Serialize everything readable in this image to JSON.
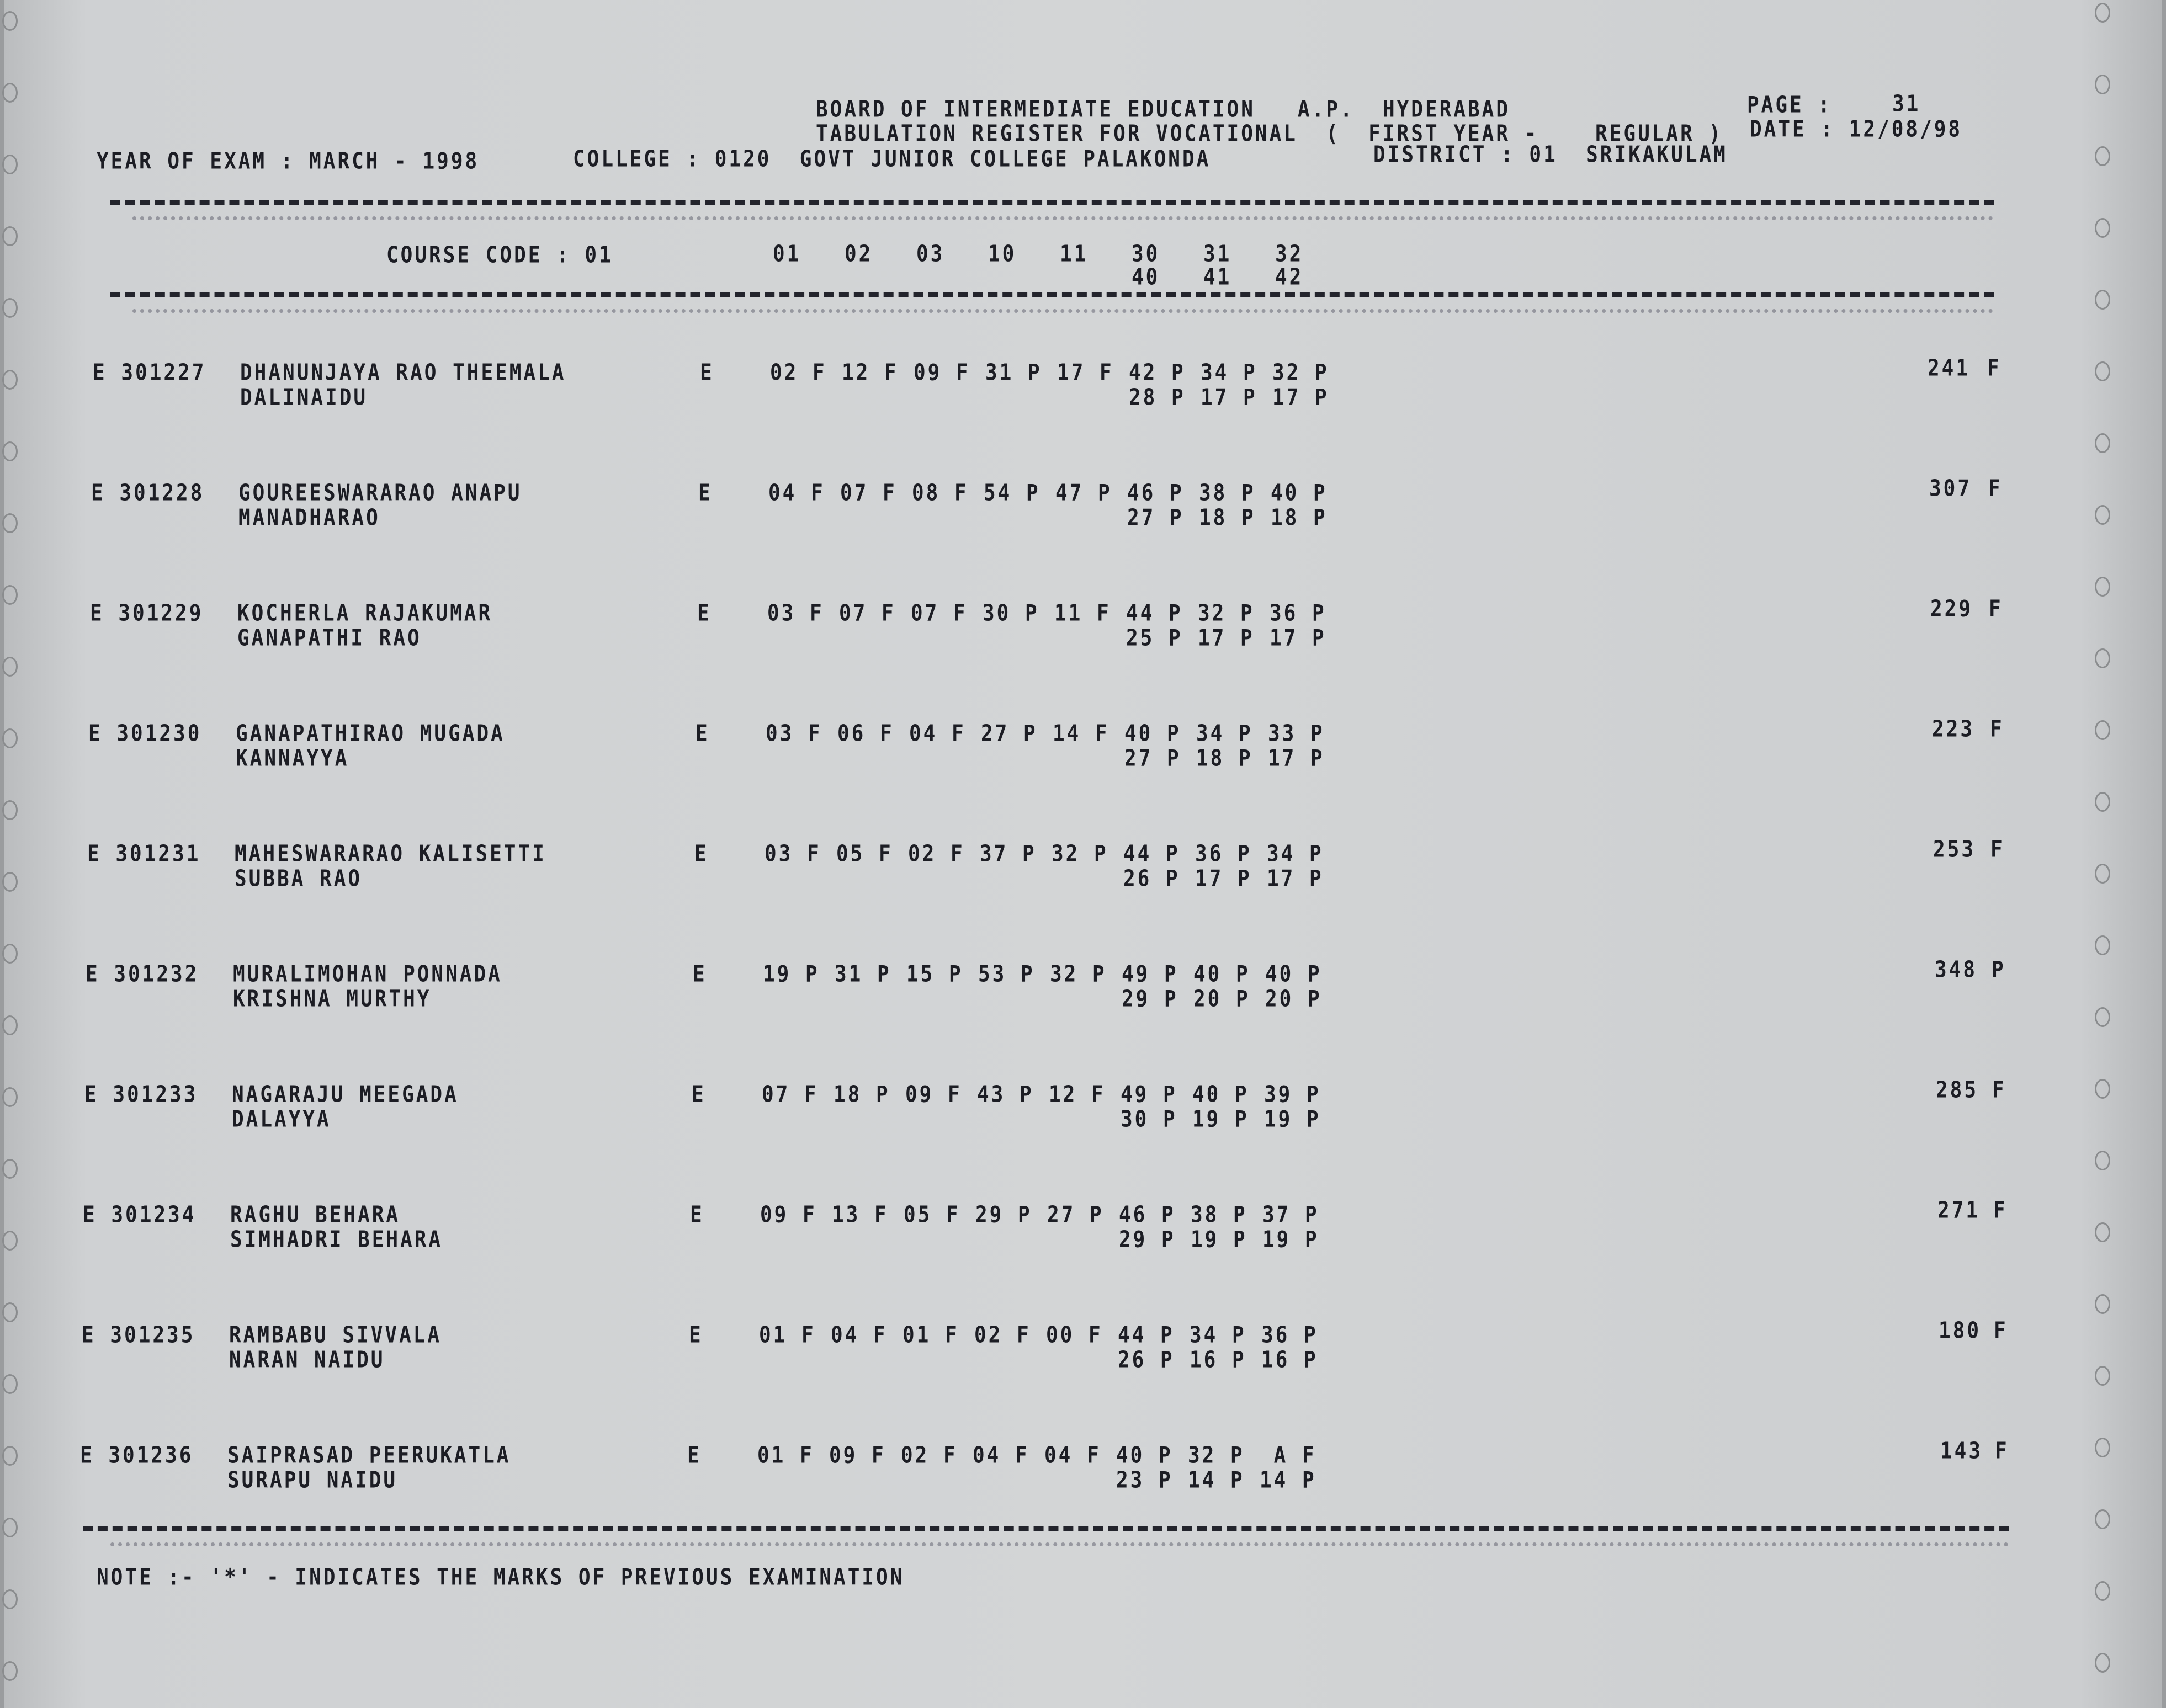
{
  "header": {
    "board": "BOARD OF INTERMEDIATE EDUCATION   A.P.  HYDERABAD",
    "page_label": "PAGE :",
    "page_value": "31",
    "register": "TABULATION REGISTER FOR VOCATIONAL  (  FIRST YEAR -    REGULAR )",
    "date": "DATE : 12/08/98",
    "year_of_exam": "YEAR OF EXAM : MARCH - 1998",
    "college": "COLLEGE : 0120  GOVT JUNIOR COLLEGE PALAKONDA",
    "district": "DISTRICT : 01  SRIKAKULAM"
  },
  "course": {
    "label": "COURSE CODE : 01",
    "codes_line1": [
      "01",
      "02",
      "03",
      "10",
      "11",
      "30",
      "31",
      "32"
    ],
    "codes_line2": [
      "40",
      "41",
      "42"
    ]
  },
  "students": [
    {
      "roll": "E 301227",
      "name1": "DHANUNJAYA RAO THEEMALA",
      "name2": "DALINAIDU",
      "medium": "E",
      "marks1": [
        "02 F",
        "12 F",
        "09 F",
        "31 P",
        "17 F",
        "42 P",
        "34 P",
        "32 P"
      ],
      "marks2": [
        "28 P",
        "17 P",
        "17 P"
      ],
      "total": "241",
      "result": "F"
    },
    {
      "roll": "E 301228",
      "name1": "GOUREESWARARAO ANAPU",
      "name2": "MANADHARAO",
      "medium": "E",
      "marks1": [
        "04 F",
        "07 F",
        "08 F",
        "54 P",
        "47 P",
        "46 P",
        "38 P",
        "40 P"
      ],
      "marks2": [
        "27 P",
        "18 P",
        "18 P"
      ],
      "total": "307",
      "result": "F"
    },
    {
      "roll": "E 301229",
      "name1": "KOCHERLA RAJAKUMAR",
      "name2": "GANAPATHI RAO",
      "medium": "E",
      "marks1": [
        "03 F",
        "07 F",
        "07 F",
        "30 P",
        "11 F",
        "44 P",
        "32 P",
        "36 P"
      ],
      "marks2": [
        "25 P",
        "17 P",
        "17 P"
      ],
      "total": "229",
      "result": "F"
    },
    {
      "roll": "E 301230",
      "name1": "GANAPATHIRAO MUGADA",
      "name2": "KANNAYYA",
      "medium": "E",
      "marks1": [
        "03 F",
        "06 F",
        "04 F",
        "27 P",
        "14 F",
        "40 P",
        "34 P",
        "33 P"
      ],
      "marks2": [
        "27 P",
        "18 P",
        "17 P"
      ],
      "total": "223",
      "result": "F"
    },
    {
      "roll": "E 301231",
      "name1": "MAHESWARARAO KALISETTI",
      "name2": "SUBBA RAO",
      "medium": "E",
      "marks1": [
        "03 F",
        "05 F",
        "02 F",
        "37 P",
        "32 P",
        "44 P",
        "36 P",
        "34 P"
      ],
      "marks2": [
        "26 P",
        "17 P",
        "17 P"
      ],
      "total": "253",
      "result": "F"
    },
    {
      "roll": "E 301232",
      "name1": "MURALIMOHAN PONNADA",
      "name2": "KRISHNA MURTHY",
      "medium": "E",
      "marks1": [
        "19 P",
        "31 P",
        "15 P",
        "53 P",
        "32 P",
        "49 P",
        "40 P",
        "40 P"
      ],
      "marks2": [
        "29 P",
        "20 P",
        "20 P"
      ],
      "total": "348",
      "result": "P"
    },
    {
      "roll": "E 301233",
      "name1": "NAGARAJU MEEGADA",
      "name2": "DALAYYA",
      "medium": "E",
      "marks1": [
        "07 F",
        "18 P",
        "09 F",
        "43 P",
        "12 F",
        "49 P",
        "40 P",
        "39 P"
      ],
      "marks2": [
        "30 P",
        "19 P",
        "19 P"
      ],
      "total": "285",
      "result": "F"
    },
    {
      "roll": "E 301234",
      "name1": "RAGHU BEHARA",
      "name2": "SIMHADRI BEHARA",
      "medium": "E",
      "marks1": [
        "09 F",
        "13 F",
        "05 F",
        "29 P",
        "27 P",
        "46 P",
        "38 P",
        "37 P"
      ],
      "marks2": [
        "29 P",
        "19 P",
        "19 P"
      ],
      "total": "271",
      "result": "F"
    },
    {
      "roll": "E 301235",
      "name1": "RAMBABU SIVVALA",
      "name2": "NARAN NAIDU",
      "medium": "E",
      "marks1": [
        "01 F",
        "04 F",
        "01 F",
        "02 F",
        "00 F",
        "44 P",
        "34 P",
        "36 P"
      ],
      "marks2": [
        "26 P",
        "16 P",
        "16 P"
      ],
      "total": "180",
      "result": "F"
    },
    {
      "roll": "E 301236",
      "name1": "SAIPRASAD PEERUKATLA",
      "name2": "SURAPU NAIDU",
      "medium": "E",
      "marks1": [
        "01 F",
        "09 F",
        "02 F",
        "04 F",
        "04 F",
        "40 P",
        "32 P",
        " A F"
      ],
      "marks2": [
        "23 P",
        "14 P",
        "14 P"
      ],
      "total": "143",
      "result": "F"
    }
  ],
  "note": "NOTE :- '*' - INDICATES THE MARKS OF PREVIOUS EXAMINATION"
}
